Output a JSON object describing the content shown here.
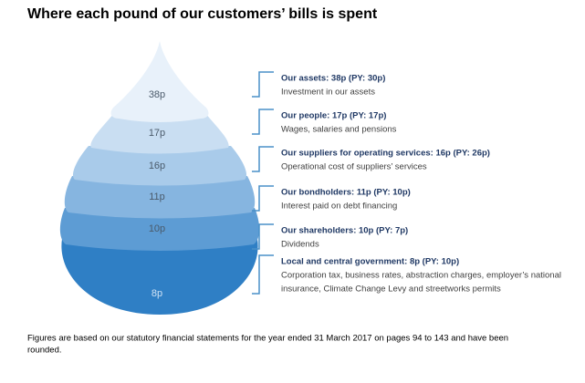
{
  "title": "Where each pound of our customers’ bills is spent",
  "layers": [
    {
      "label": "38p"
    },
    {
      "label": "17p"
    },
    {
      "label": "16p"
    },
    {
      "label": "11p"
    },
    {
      "label": "10p"
    },
    {
      "label": "8p"
    }
  ],
  "items": [
    {
      "heading": "Our assets: 38p (PY: 30p)",
      "description": [
        "Investment in our assets"
      ]
    },
    {
      "heading": "Our people: 17p (PY: 17p)",
      "description": [
        "Wages, salaries and pensions"
      ]
    },
    {
      "heading": "Our suppliers for operating services: 16p (PY: 26p)",
      "description": [
        "Operational cost of suppliers’ services"
      ]
    },
    {
      "heading": "Our bondholders: 11p (PY: 10p)",
      "description": [
        "Interest paid on debt financing"
      ]
    },
    {
      "heading": "Our shareholders: 10p (PY: 7p)",
      "description": [
        "Dividends"
      ]
    },
    {
      "heading": "Local and central government: 8p (PY: 10p)",
      "description": [
        "Corporation tax, business rates, abstraction charges, employer’s national",
        "insurance, Climate Change Levy and streetworks permits"
      ]
    }
  ],
  "footnote": [
    "Figures are based on our statutory financial statements for the year ended 31 March 2017 on pages 94 to 143 and have been",
    "rounded."
  ]
}
